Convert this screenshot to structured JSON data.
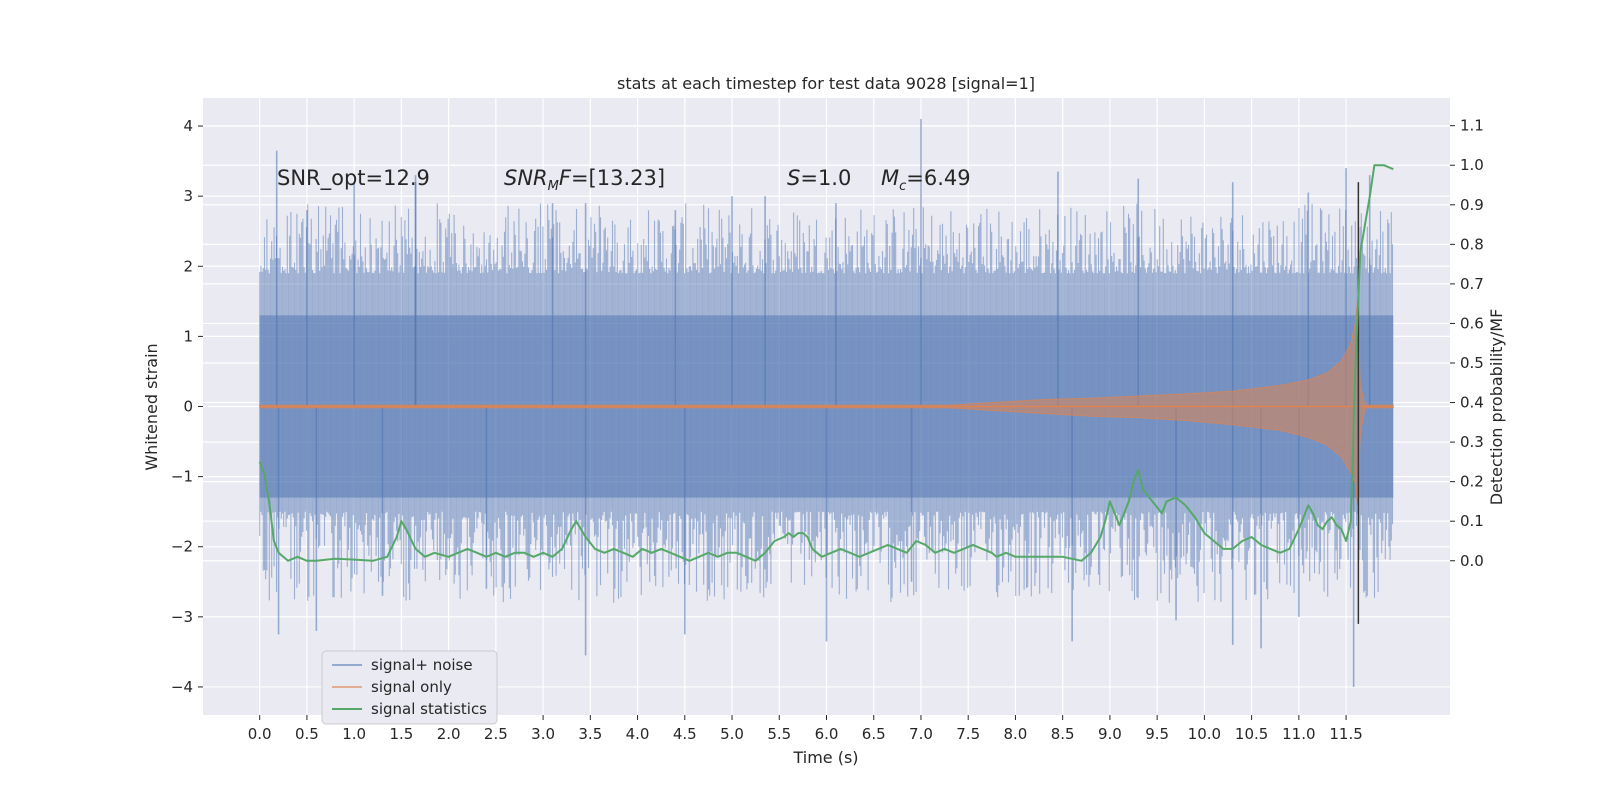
{
  "chart_data": {
    "type": "line",
    "title": "stats at each timestep for test data 9028 [signal=1]",
    "xlabel": "Time (s)",
    "ylabel": "Whitened strain",
    "ylabel_right": "Detection probability/MF",
    "xlim": [
      -0.6,
      12.6
    ],
    "ylim": [
      -4.4,
      4.4
    ],
    "ylim_right": [
      -0.39,
      1.17
    ],
    "x_ticks": [
      0.0,
      0.5,
      1.0,
      1.5,
      2.0,
      2.5,
      3.0,
      3.5,
      4.0,
      4.5,
      5.0,
      5.5,
      6.0,
      6.5,
      7.0,
      7.5,
      8.0,
      8.5,
      9.0,
      9.5,
      10.0,
      10.5,
      11.0,
      11.5
    ],
    "x_tick_labels": [
      "0.0",
      "0.5",
      "1.0",
      "1.5",
      "2.0",
      "2.5",
      "3.0",
      "3.5",
      "4.0",
      "4.5",
      "5.0",
      "5.5",
      "6.0",
      "6.5",
      "7.0",
      "7.5",
      "8.0",
      "8.5",
      "9.0",
      "9.5",
      "10.0",
      "10.5",
      "11.0",
      "11.5"
    ],
    "y_ticks": [
      4,
      3,
      2,
      1,
      0,
      -1,
      -2,
      -3,
      -4
    ],
    "y_tick_labels": [
      "4",
      "3",
      "2",
      "1",
      "0",
      "−1",
      "−2",
      "−3",
      "−4"
    ],
    "y_right_ticks": [
      1.1,
      1.0,
      0.9,
      0.8,
      0.7,
      0.6,
      0.5,
      0.4,
      0.3,
      0.2,
      0.1,
      0.0
    ],
    "y_right_tick_labels": [
      "1.1",
      "1.0",
      "0.9",
      "0.8",
      "0.7",
      "0.6",
      "0.5",
      "0.4",
      "0.3",
      "0.2",
      "0.1",
      "0.0"
    ],
    "grid": true,
    "legend_position": "bottom-left",
    "annotations": [
      {
        "id": "snr-opt",
        "text": "SNR_opt=12.9",
        "x": 0.2,
        "y": 3.3
      },
      {
        "id": "snr-mf",
        "text": "SNR_MF=[13.23]",
        "x": 2.6,
        "y": 3.3
      },
      {
        "id": "s-value",
        "text": "S=1.0",
        "x": 5.6,
        "y": 3.3
      },
      {
        "id": "mc-value",
        "text": "M_c=6.49",
        "x": 6.6,
        "y": 3.3
      }
    ],
    "series": [
      {
        "name": "signal+ noise",
        "color": "#4C72B0",
        "kind": "dense-noise",
        "x_range": [
          0.0,
          12.0
        ],
        "core_band": [
          -1.3,
          1.3
        ],
        "peaks_x": [
          0.18,
          0.5,
          1.0,
          1.65,
          1.65,
          3.1,
          3.45,
          4.4,
          5.0,
          5.35,
          6.1,
          7.0,
          8.45,
          9.3,
          10.3,
          11.1,
          11.5,
          11.75
        ],
        "peaks_y": [
          3.65,
          2.8,
          3.2,
          3.2,
          3.3,
          2.9,
          2.9,
          2.8,
          3.0,
          3.0,
          2.9,
          4.1,
          3.35,
          3.25,
          3.2,
          3.05,
          3.4,
          3.3
        ],
        "troughs_x": [
          0.2,
          0.6,
          1.3,
          2.4,
          3.45,
          4.5,
          6.0,
          6.9,
          8.6,
          9.7,
          10.3,
          10.6,
          11.0,
          11.58
        ],
        "troughs_y": [
          -3.25,
          -3.2,
          -2.7,
          -2.6,
          -3.55,
          -3.25,
          -3.35,
          -2.5,
          -3.35,
          -3.05,
          -3.4,
          -3.45,
          -3.0,
          -4.0
        ]
      },
      {
        "name": "signal only",
        "color": "#DD8452",
        "kind": "chirp-envelope",
        "x": [
          0.0,
          7.3,
          7.8,
          8.3,
          8.8,
          9.3,
          9.8,
          10.3,
          10.8,
          11.1,
          11.3,
          11.45,
          11.55,
          11.6,
          11.62,
          11.65,
          11.7,
          12.0
        ],
        "upper": [
          0.02,
          0.02,
          0.06,
          0.1,
          0.12,
          0.15,
          0.18,
          0.22,
          0.3,
          0.38,
          0.48,
          0.65,
          0.9,
          1.2,
          1.5,
          0.3,
          0.02,
          0.02
        ],
        "lower": [
          -0.02,
          -0.02,
          -0.06,
          -0.1,
          -0.14,
          -0.16,
          -0.2,
          -0.26,
          -0.34,
          -0.44,
          -0.55,
          -0.72,
          -0.95,
          -1.1,
          -1.4,
          -0.4,
          -0.02,
          -0.02
        ]
      },
      {
        "name": "signal statistics",
        "color": "#55A868",
        "kind": "line",
        "axis": "right",
        "x": [
          0.0,
          0.05,
          0.1,
          0.15,
          0.2,
          0.3,
          0.4,
          0.5,
          0.6,
          0.8,
          1.0,
          1.2,
          1.35,
          1.45,
          1.5,
          1.55,
          1.65,
          1.75,
          1.85,
          2.0,
          2.1,
          2.2,
          2.3,
          2.4,
          2.5,
          2.6,
          2.7,
          2.8,
          2.9,
          3.0,
          3.1,
          3.2,
          3.3,
          3.35,
          3.45,
          3.55,
          3.65,
          3.75,
          3.85,
          3.95,
          4.05,
          4.15,
          4.25,
          4.35,
          4.45,
          4.55,
          4.65,
          4.75,
          4.85,
          4.95,
          5.05,
          5.15,
          5.25,
          5.35,
          5.45,
          5.55,
          5.6,
          5.65,
          5.7,
          5.75,
          5.8,
          5.85,
          5.95,
          6.05,
          6.15,
          6.25,
          6.35,
          6.45,
          6.55,
          6.65,
          6.75,
          6.85,
          6.95,
          7.05,
          7.15,
          7.25,
          7.35,
          7.45,
          7.55,
          7.65,
          7.75,
          7.8,
          7.9,
          8.0,
          8.2,
          8.5,
          8.7,
          8.8,
          8.9,
          8.95,
          9.0,
          9.05,
          9.1,
          9.2,
          9.25,
          9.3,
          9.35,
          9.45,
          9.55,
          9.6,
          9.7,
          9.8,
          9.9,
          10.0,
          10.1,
          10.2,
          10.3,
          10.4,
          10.5,
          10.6,
          10.7,
          10.8,
          10.9,
          11.0,
          11.1,
          11.15,
          11.2,
          11.25,
          11.3,
          11.35,
          11.4,
          11.45,
          11.5,
          11.55,
          11.6,
          11.65,
          11.7,
          11.75,
          11.8,
          11.9,
          12.0
        ],
        "y": [
          0.25,
          0.22,
          0.15,
          0.05,
          0.02,
          0.0,
          0.01,
          0.0,
          0.0,
          0.005,
          0.003,
          0.0,
          0.01,
          0.06,
          0.1,
          0.08,
          0.03,
          0.01,
          0.02,
          0.01,
          0.02,
          0.03,
          0.02,
          0.01,
          0.02,
          0.01,
          0.02,
          0.02,
          0.01,
          0.02,
          0.01,
          0.03,
          0.08,
          0.1,
          0.06,
          0.03,
          0.02,
          0.03,
          0.02,
          0.01,
          0.03,
          0.02,
          0.03,
          0.02,
          0.01,
          0.0,
          0.01,
          0.02,
          0.01,
          0.02,
          0.02,
          0.01,
          0.0,
          0.02,
          0.05,
          0.06,
          0.07,
          0.06,
          0.07,
          0.07,
          0.06,
          0.03,
          0.01,
          0.02,
          0.03,
          0.02,
          0.01,
          0.02,
          0.03,
          0.04,
          0.03,
          0.02,
          0.05,
          0.04,
          0.02,
          0.03,
          0.02,
          0.03,
          0.04,
          0.03,
          0.02,
          0.01,
          0.02,
          0.01,
          0.01,
          0.01,
          0.0,
          0.02,
          0.06,
          0.1,
          0.15,
          0.12,
          0.09,
          0.15,
          0.2,
          0.23,
          0.18,
          0.15,
          0.12,
          0.15,
          0.16,
          0.14,
          0.11,
          0.07,
          0.05,
          0.03,
          0.03,
          0.05,
          0.06,
          0.04,
          0.03,
          0.02,
          0.03,
          0.08,
          0.14,
          0.12,
          0.09,
          0.08,
          0.1,
          0.11,
          0.09,
          0.08,
          0.05,
          0.1,
          0.5,
          0.78,
          0.85,
          0.92,
          1.0,
          1.0,
          0.99
        ]
      }
    ],
    "marker": {
      "x": 11.63,
      "y_top": 3.2,
      "y_bottom": -3.1,
      "color": "#333333"
    }
  }
}
